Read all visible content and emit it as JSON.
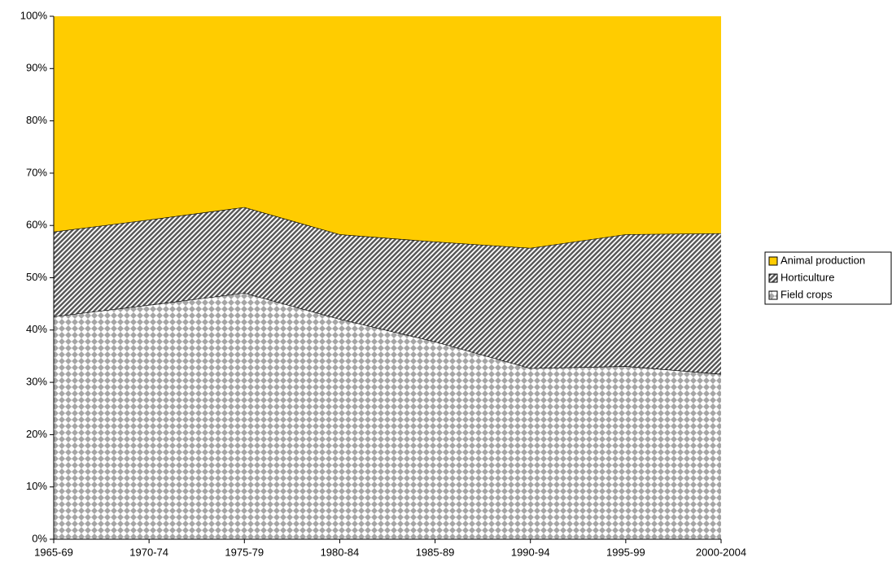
{
  "chart_data": {
    "type": "stacked_area",
    "categories": [
      "1965-69",
      "1970-74",
      "1975-79",
      "1980-84",
      "1985-89",
      "1990-94",
      "1995-99",
      "2000-2004"
    ],
    "series": [
      {
        "name": "Field crops",
        "color": "#a6a6a6",
        "pattern": "checker",
        "values": [
          42.6,
          44.8,
          47.1,
          42.1,
          37.8,
          32.7,
          33.1,
          31.6
        ]
      },
      {
        "name": "Horticulture",
        "color": "#595959",
        "pattern": "diagonal",
        "values": [
          16.2,
          16.3,
          16.4,
          16.2,
          19.1,
          23.0,
          25.2,
          26.9
        ]
      },
      {
        "name": "Animal production",
        "color": "#ffcc00",
        "pattern": "solid",
        "values": [
          41.2,
          38.9,
          36.5,
          41.7,
          43.1,
          44.3,
          41.7,
          41.5
        ]
      }
    ],
    "ylim": [
      0,
      100
    ],
    "yticks": [
      {
        "value": 0,
        "label": "0%"
      },
      {
        "value": 10,
        "label": "10%"
      },
      {
        "value": 20,
        "label": "20%"
      },
      {
        "value": 30,
        "label": "30%"
      },
      {
        "value": 40,
        "label": "40%"
      },
      {
        "value": 50,
        "label": "50%"
      },
      {
        "value": 60,
        "label": "60%"
      },
      {
        "value": 70,
        "label": "70%"
      },
      {
        "value": 80,
        "label": "80%"
      },
      {
        "value": 90,
        "label": "90%"
      },
      {
        "value": 100,
        "label": "100%"
      }
    ],
    "legend": "right"
  }
}
